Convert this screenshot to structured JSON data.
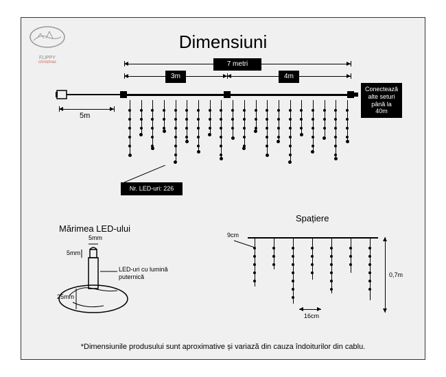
{
  "title": "Dimensiuni",
  "logo_text": "FLIPPY",
  "logo_subtext": "christmas",
  "main": {
    "total_width": "7 metri",
    "seg1": "3m",
    "seg2": "4m",
    "lead_cable": "5m",
    "connect_label": "Conectează alte seturi până la 40m",
    "led_count_label": "Nr. LED-uri: 226"
  },
  "led_size": {
    "title": "Mărimea LED-ului",
    "w": "5mm",
    "h": "5mm",
    "base": "25mm",
    "note": "LED-uri cu lumină puternică"
  },
  "spacing": {
    "title": "Spațiere",
    "drop": "9cm",
    "gap": "16cm",
    "height": "0,7m"
  },
  "footnote": "*Dimensiunile produsului sunt aproximative și variază din cauza îndoiturilor din cablu.",
  "colors": {
    "bg": "#f0f0f0",
    "ink": "#000000",
    "bar": "#000000"
  },
  "strand_heights": [
    80,
    50,
    70,
    45,
    90,
    60,
    75,
    50,
    85,
    55,
    70,
    45,
    80,
    60,
    90,
    50,
    75,
    55,
    85,
    60
  ]
}
